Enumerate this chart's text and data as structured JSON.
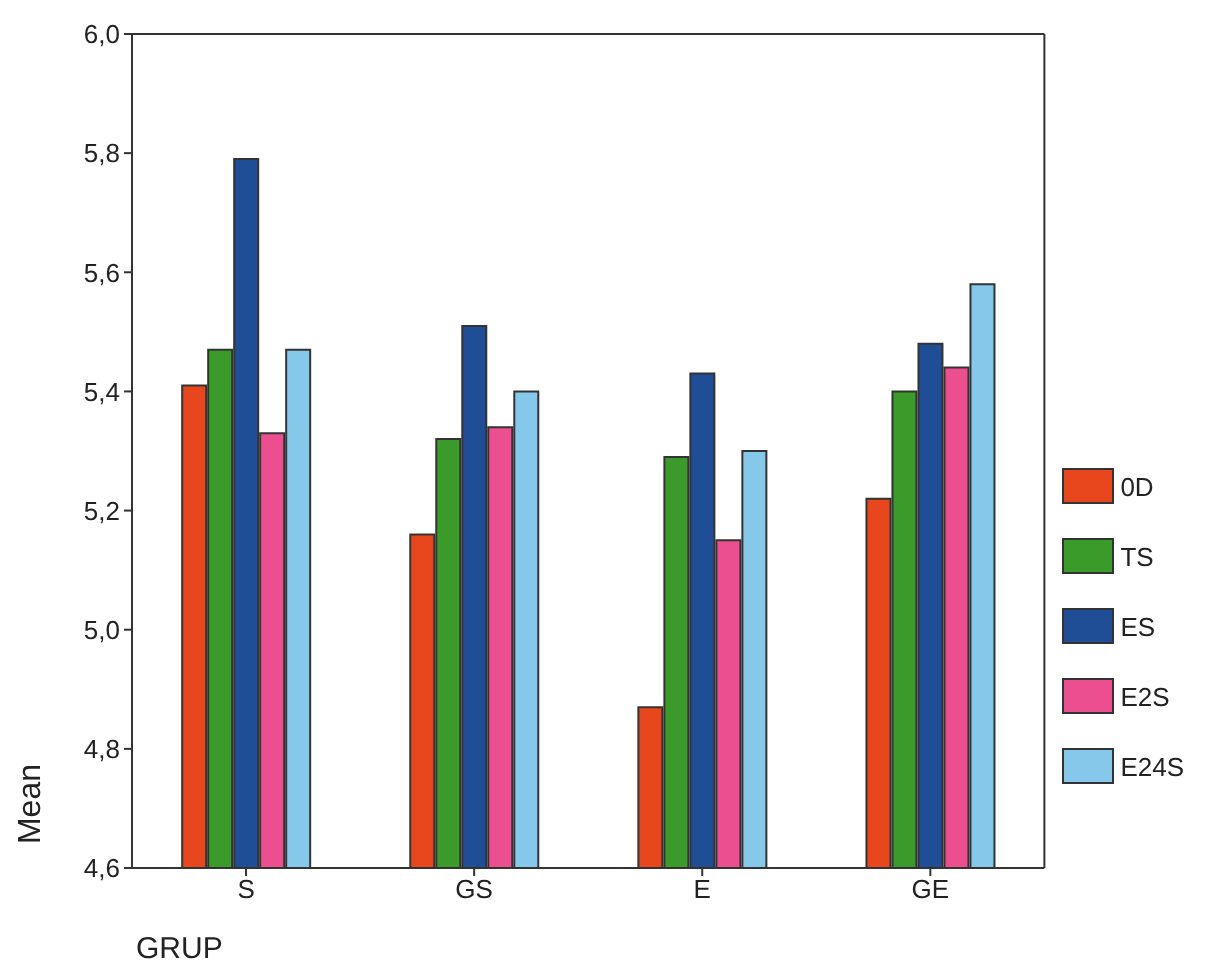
{
  "chart_data": {
    "type": "bar",
    "xlabel": "GRUP",
    "ylabel": "Mean",
    "categories": [
      "S",
      "GS",
      "E",
      "GE"
    ],
    "series": [
      {
        "name": "0D",
        "color": "#e8461c",
        "values": [
          5.41,
          5.16,
          4.87,
          5.22
        ]
      },
      {
        "name": "TS",
        "color": "#3a9a2a",
        "values": [
          5.47,
          5.32,
          5.29,
          5.4
        ]
      },
      {
        "name": "ES",
        "color": "#1f4e96",
        "values": [
          5.79,
          5.51,
          5.43,
          5.48
        ]
      },
      {
        "name": "E2S",
        "color": "#ec4f90",
        "values": [
          5.33,
          5.34,
          5.15,
          5.44
        ]
      },
      {
        "name": "E24S",
        "color": "#86c8ea",
        "values": [
          5.47,
          5.4,
          5.3,
          5.58
        ]
      }
    ],
    "ylim": [
      4.6,
      6.0
    ],
    "yticks": [
      {
        "value": 4.6,
        "label": "4,6"
      },
      {
        "value": 4.8,
        "label": "4,8"
      },
      {
        "value": 5.0,
        "label": "5,0"
      },
      {
        "value": 5.2,
        "label": "5,2"
      },
      {
        "value": 5.4,
        "label": "5,4"
      },
      {
        "value": 5.6,
        "label": "5,6"
      },
      {
        "value": 5.8,
        "label": "5,8"
      },
      {
        "value": 6.0,
        "label": "6,0"
      }
    ],
    "legend": "right",
    "grid": false
  }
}
